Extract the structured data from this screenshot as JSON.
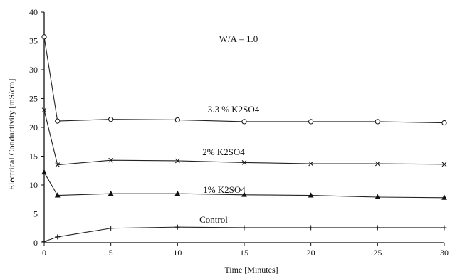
{
  "chart_data": {
    "type": "line",
    "title": "",
    "xlabel": "Time [Minutes]",
    "ylabel": "Electrical Conductivity [mS/cm]",
    "xlim": [
      0,
      30
    ],
    "ylim": [
      0,
      40
    ],
    "x_ticks": [
      0,
      5,
      10,
      15,
      20,
      25,
      30
    ],
    "y_ticks": [
      0,
      5,
      10,
      15,
      20,
      25,
      30,
      35,
      40
    ],
    "grid": false,
    "legend": "none",
    "annotation": "W/A = 1.0",
    "series": [
      {
        "name": "3.3 % K2SO4",
        "marker": "circle",
        "x": [
          0,
          1,
          5,
          10,
          15,
          20,
          25,
          30
        ],
        "y": [
          35.7,
          21.1,
          21.4,
          21.3,
          21.0,
          21.0,
          21.0,
          20.8
        ]
      },
      {
        "name": "2% K2SO4",
        "marker": "x",
        "x": [
          0,
          1,
          5,
          10,
          15,
          20,
          25,
          30
        ],
        "y": [
          23.0,
          13.5,
          14.3,
          14.2,
          13.9,
          13.7,
          13.7,
          13.6
        ]
      },
      {
        "name": "1% K2SO4",
        "marker": "triangle",
        "x": [
          0,
          1,
          5,
          10,
          15,
          20,
          25,
          30
        ],
        "y": [
          12.2,
          8.2,
          8.5,
          8.5,
          8.3,
          8.2,
          7.9,
          7.8
        ]
      },
      {
        "name": "Control",
        "marker": "plus",
        "x": [
          0,
          1,
          5,
          10,
          15,
          20,
          25,
          30
        ],
        "y": [
          0.2,
          1.0,
          2.5,
          2.7,
          2.6,
          2.6,
          2.6,
          2.6
        ]
      }
    ]
  }
}
